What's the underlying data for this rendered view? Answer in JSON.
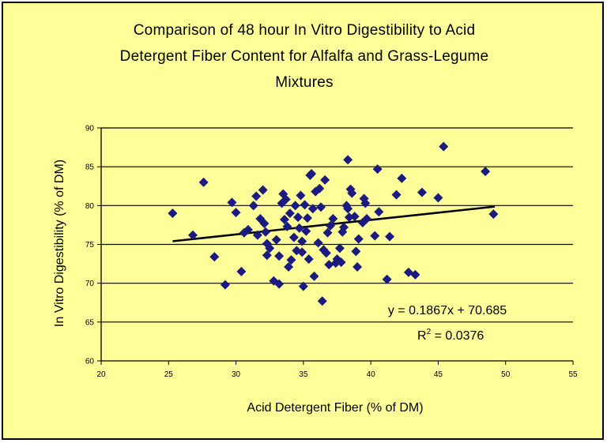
{
  "chart_data": {
    "type": "scatter",
    "title_lines": [
      "Comparison of 48 hour In Vitro Digestibility to Acid",
      "Detergent Fiber Content for Alfalfa and Grass-Legume",
      "Mixtures"
    ],
    "xlabel": "Acid Detergent Fiber (% of DM)",
    "ylabel": "In Vitro Digestibility (% of DM)",
    "xlim": [
      20,
      55
    ],
    "ylim": [
      60,
      90
    ],
    "x_ticks": [
      "20",
      "25",
      "30",
      "35",
      "40",
      "45",
      "50",
      "55"
    ],
    "y_ticks": [
      "60",
      "65",
      "70",
      "75",
      "80",
      "85",
      "90"
    ],
    "grid": "horizontal",
    "marker_color": "#1a1a80",
    "trendline": {
      "slope": 0.1867,
      "intercept": 70.685,
      "x_range": [
        25.3,
        49.2
      ],
      "equation": "y = 0.1867x + 70.685",
      "r2_prefix": "R",
      "r2_sup": "2",
      "r2_value": " = 0.0376"
    },
    "points": [
      [
        25.3,
        79.0
      ],
      [
        26.8,
        76.2
      ],
      [
        27.6,
        83.0
      ],
      [
        28.4,
        73.4
      ],
      [
        29.2,
        69.8
      ],
      [
        29.7,
        80.4
      ],
      [
        30.0,
        79.1
      ],
      [
        30.4,
        71.5
      ],
      [
        30.6,
        76.5
      ],
      [
        30.9,
        76.9
      ],
      [
        31.3,
        80.0
      ],
      [
        31.5,
        81.2
      ],
      [
        31.6,
        76.2
      ],
      [
        31.8,
        78.3
      ],
      [
        32.0,
        82.0
      ],
      [
        32.1,
        77.7
      ],
      [
        32.2,
        76.6
      ],
      [
        32.3,
        75.1
      ],
      [
        32.3,
        73.6
      ],
      [
        32.5,
        74.5
      ],
      [
        32.8,
        70.3
      ],
      [
        33.0,
        75.6
      ],
      [
        33.2,
        73.5
      ],
      [
        33.2,
        69.9
      ],
      [
        33.4,
        80.3
      ],
      [
        33.5,
        81.5
      ],
      [
        33.6,
        78.2
      ],
      [
        33.7,
        80.8
      ],
      [
        33.8,
        77.3
      ],
      [
        33.9,
        72.1
      ],
      [
        34.0,
        79.0
      ],
      [
        34.1,
        73.0
      ],
      [
        34.3,
        75.9
      ],
      [
        34.4,
        80.0
      ],
      [
        34.5,
        74.2
      ],
      [
        34.6,
        78.5
      ],
      [
        34.7,
        77.1
      ],
      [
        34.8,
        81.3
      ],
      [
        34.9,
        75.4
      ],
      [
        34.9,
        74.0
      ],
      [
        35.0,
        69.6
      ],
      [
        35.1,
        80.1
      ],
      [
        35.2,
        76.7
      ],
      [
        35.3,
        78.4
      ],
      [
        35.4,
        73.1
      ],
      [
        35.5,
        83.9
      ],
      [
        35.6,
        84.1
      ],
      [
        35.7,
        79.6
      ],
      [
        35.8,
        70.9
      ],
      [
        35.9,
        81.8
      ],
      [
        36.1,
        75.2
      ],
      [
        36.2,
        82.2
      ],
      [
        36.3,
        79.8
      ],
      [
        36.4,
        67.7
      ],
      [
        36.5,
        74.3
      ],
      [
        36.6,
        83.3
      ],
      [
        36.7,
        73.9
      ],
      [
        36.8,
        76.5
      ],
      [
        36.9,
        72.4
      ],
      [
        37.0,
        77.4
      ],
      [
        37.2,
        78.3
      ],
      [
        37.4,
        72.6
      ],
      [
        37.5,
        73.1
      ],
      [
        37.7,
        74.5
      ],
      [
        37.8,
        72.7
      ],
      [
        37.9,
        76.6
      ],
      [
        38.0,
        77.2
      ],
      [
        38.2,
        80.0
      ],
      [
        38.3,
        79.6
      ],
      [
        38.3,
        85.9
      ],
      [
        38.4,
        78.5
      ],
      [
        38.5,
        82.1
      ],
      [
        38.6,
        81.6
      ],
      [
        38.8,
        78.6
      ],
      [
        38.9,
        74.1
      ],
      [
        39.0,
        72.1
      ],
      [
        39.1,
        75.7
      ],
      [
        39.4,
        77.8
      ],
      [
        39.5,
        80.9
      ],
      [
        39.6,
        80.3
      ],
      [
        39.7,
        78.3
      ],
      [
        40.3,
        76.1
      ],
      [
        40.5,
        84.7
      ],
      [
        40.6,
        79.2
      ],
      [
        41.2,
        70.5
      ],
      [
        41.4,
        76.0
      ],
      [
        41.9,
        81.4
      ],
      [
        42.3,
        83.5
      ],
      [
        42.8,
        71.4
      ],
      [
        43.3,
        71.1
      ],
      [
        43.8,
        81.7
      ],
      [
        45.0,
        81.0
      ],
      [
        45.4,
        87.6
      ],
      [
        48.5,
        84.4
      ],
      [
        49.1,
        78.9
      ]
    ]
  }
}
